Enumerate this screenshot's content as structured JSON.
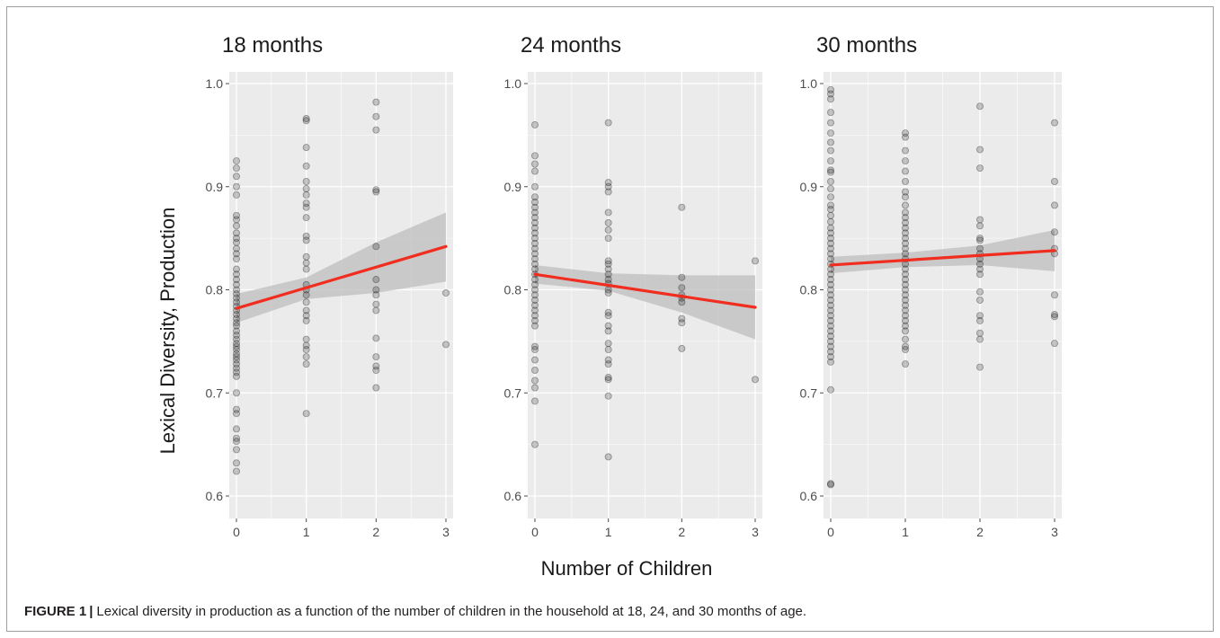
{
  "caption": {
    "label": "FIGURE 1",
    "separator": "|",
    "text": "Lexical diversity in production as a function of the number of children in the household at 18, 24, and 30 months of age."
  },
  "colors": {
    "panel_bg": "#ebebeb",
    "grid": "#ffffff",
    "points": "#000000",
    "fit_line": "#f02d1f",
    "ribbon": "#bdbdbd",
    "text": "#1a1a1a",
    "ticks": "#4d4d4d"
  },
  "chart_data": {
    "type": "scatter",
    "ylabel": "Lexical Diversity, Production",
    "xlabel": "Number of Children",
    "shared_ylim": [
      0.6,
      1.0
    ],
    "shared_xlim": [
      0,
      3
    ],
    "y_ticks": [
      "0.6",
      "0.7",
      "0.8",
      "0.9",
      "1.0"
    ],
    "x_ticks": [
      "0",
      "1",
      "2",
      "3"
    ],
    "grid": true,
    "point_alpha": 0.2,
    "panels": [
      {
        "title": "18 months",
        "fit": {
          "x": [
            0,
            3
          ],
          "y": [
            0.782,
            0.842
          ]
        },
        "ci": {
          "x": [
            0,
            1,
            2,
            3
          ],
          "lower": [
            0.768,
            0.791,
            0.797,
            0.808
          ],
          "upper": [
            0.796,
            0.812,
            0.846,
            0.875
          ]
        },
        "points": [
          [
            0,
            0.925
          ],
          [
            0,
            0.918
          ],
          [
            0,
            0.91
          ],
          [
            0,
            0.9
          ],
          [
            0,
            0.892
          ],
          [
            0,
            0.872
          ],
          [
            0,
            0.868
          ],
          [
            0,
            0.862
          ],
          [
            0,
            0.855
          ],
          [
            0,
            0.85
          ],
          [
            0,
            0.846
          ],
          [
            0,
            0.84
          ],
          [
            0,
            0.835
          ],
          [
            0,
            0.83
          ],
          [
            0,
            0.82
          ],
          [
            0,
            0.815
          ],
          [
            0,
            0.81
          ],
          [
            0,
            0.805
          ],
          [
            0,
            0.8
          ],
          [
            0,
            0.796
          ],
          [
            0,
            0.792
          ],
          [
            0,
            0.788
          ],
          [
            0,
            0.784
          ],
          [
            0,
            0.78
          ],
          [
            0,
            0.776
          ],
          [
            0,
            0.772
          ],
          [
            0,
            0.768
          ],
          [
            0,
            0.765
          ],
          [
            0,
            0.76
          ],
          [
            0,
            0.756
          ],
          [
            0,
            0.752
          ],
          [
            0,
            0.748
          ],
          [
            0,
            0.745
          ],
          [
            0,
            0.742
          ],
          [
            0,
            0.738
          ],
          [
            0,
            0.735
          ],
          [
            0,
            0.732
          ],
          [
            0,
            0.728
          ],
          [
            0,
            0.724
          ],
          [
            0,
            0.72
          ],
          [
            0,
            0.716
          ],
          [
            0,
            0.7
          ],
          [
            0,
            0.684
          ],
          [
            0,
            0.68
          ],
          [
            0,
            0.665
          ],
          [
            0,
            0.656
          ],
          [
            0,
            0.653
          ],
          [
            0,
            0.645
          ],
          [
            0,
            0.632
          ],
          [
            0,
            0.624
          ],
          [
            1,
            0.966
          ],
          [
            1,
            0.964
          ],
          [
            1,
            0.938
          ],
          [
            1,
            0.92
          ],
          [
            1,
            0.905
          ],
          [
            1,
            0.898
          ],
          [
            1,
            0.892
          ],
          [
            1,
            0.884
          ],
          [
            1,
            0.88
          ],
          [
            1,
            0.87
          ],
          [
            1,
            0.852
          ],
          [
            1,
            0.848
          ],
          [
            1,
            0.832
          ],
          [
            1,
            0.826
          ],
          [
            1,
            0.82
          ],
          [
            1,
            0.805
          ],
          [
            1,
            0.8
          ],
          [
            1,
            0.795
          ],
          [
            1,
            0.788
          ],
          [
            1,
            0.78
          ],
          [
            1,
            0.775
          ],
          [
            1,
            0.77
          ],
          [
            1,
            0.752
          ],
          [
            1,
            0.746
          ],
          [
            1,
            0.742
          ],
          [
            1,
            0.735
          ],
          [
            1,
            0.728
          ],
          [
            1,
            0.68
          ],
          [
            2,
            0.982
          ],
          [
            2,
            0.968
          ],
          [
            2,
            0.955
          ],
          [
            2,
            0.897
          ],
          [
            2,
            0.895
          ],
          [
            2,
            0.842
          ],
          [
            2,
            0.81
          ],
          [
            2,
            0.8
          ],
          [
            2,
            0.795
          ],
          [
            2,
            0.786
          ],
          [
            2,
            0.78
          ],
          [
            2,
            0.753
          ],
          [
            2,
            0.735
          ],
          [
            2,
            0.726
          ],
          [
            2,
            0.722
          ],
          [
            2,
            0.705
          ],
          [
            3,
            0.797
          ],
          [
            3,
            0.747
          ]
        ]
      },
      {
        "title": "24 months",
        "fit": {
          "x": [
            0,
            3
          ],
          "y": [
            0.815,
            0.783
          ]
        },
        "ci": {
          "x": [
            0,
            1,
            2,
            3
          ],
          "lower": [
            0.806,
            0.799,
            0.778,
            0.752
          ],
          "upper": [
            0.824,
            0.816,
            0.814,
            0.814
          ]
        },
        "points": [
          [
            0,
            0.96
          ],
          [
            0,
            0.93
          ],
          [
            0,
            0.922
          ],
          [
            0,
            0.915
          ],
          [
            0,
            0.9
          ],
          [
            0,
            0.89
          ],
          [
            0,
            0.885
          ],
          [
            0,
            0.88
          ],
          [
            0,
            0.875
          ],
          [
            0,
            0.87
          ],
          [
            0,
            0.865
          ],
          [
            0,
            0.86
          ],
          [
            0,
            0.855
          ],
          [
            0,
            0.85
          ],
          [
            0,
            0.845
          ],
          [
            0,
            0.84
          ],
          [
            0,
            0.835
          ],
          [
            0,
            0.83
          ],
          [
            0,
            0.825
          ],
          [
            0,
            0.82
          ],
          [
            0,
            0.815
          ],
          [
            0,
            0.81
          ],
          [
            0,
            0.805
          ],
          [
            0,
            0.8
          ],
          [
            0,
            0.795
          ],
          [
            0,
            0.79
          ],
          [
            0,
            0.785
          ],
          [
            0,
            0.78
          ],
          [
            0,
            0.775
          ],
          [
            0,
            0.77
          ],
          [
            0,
            0.765
          ],
          [
            0,
            0.745
          ],
          [
            0,
            0.742
          ],
          [
            0,
            0.732
          ],
          [
            0,
            0.722
          ],
          [
            0,
            0.712
          ],
          [
            0,
            0.705
          ],
          [
            0,
            0.692
          ],
          [
            0,
            0.65
          ],
          [
            1,
            0.962
          ],
          [
            1,
            0.904
          ],
          [
            1,
            0.9
          ],
          [
            1,
            0.895
          ],
          [
            1,
            0.875
          ],
          [
            1,
            0.865
          ],
          [
            1,
            0.858
          ],
          [
            1,
            0.85
          ],
          [
            1,
            0.828
          ],
          [
            1,
            0.825
          ],
          [
            1,
            0.82
          ],
          [
            1,
            0.815
          ],
          [
            1,
            0.81
          ],
          [
            1,
            0.806
          ],
          [
            1,
            0.8
          ],
          [
            1,
            0.797
          ],
          [
            1,
            0.778
          ],
          [
            1,
            0.775
          ],
          [
            1,
            0.765
          ],
          [
            1,
            0.76
          ],
          [
            1,
            0.748
          ],
          [
            1,
            0.742
          ],
          [
            1,
            0.732
          ],
          [
            1,
            0.728
          ],
          [
            1,
            0.715
          ],
          [
            1,
            0.713
          ],
          [
            1,
            0.697
          ],
          [
            1,
            0.638
          ],
          [
            2,
            0.88
          ],
          [
            2,
            0.812
          ],
          [
            2,
            0.802
          ],
          [
            2,
            0.795
          ],
          [
            2,
            0.792
          ],
          [
            2,
            0.788
          ],
          [
            2,
            0.772
          ],
          [
            2,
            0.768
          ],
          [
            2,
            0.743
          ],
          [
            3,
            0.828
          ],
          [
            3,
            0.713
          ]
        ]
      },
      {
        "title": "30 months",
        "fit": {
          "x": [
            0,
            3
          ],
          "y": [
            0.824,
            0.838
          ]
        },
        "ci": {
          "x": [
            0,
            1,
            2,
            3
          ],
          "lower": [
            0.816,
            0.822,
            0.824,
            0.818
          ],
          "upper": [
            0.832,
            0.836,
            0.843,
            0.858
          ]
        },
        "points": [
          [
            0,
            0.994
          ],
          [
            0,
            0.99
          ],
          [
            0,
            0.985
          ],
          [
            0,
            0.972
          ],
          [
            0,
            0.962
          ],
          [
            0,
            0.952
          ],
          [
            0,
            0.943
          ],
          [
            0,
            0.935
          ],
          [
            0,
            0.925
          ],
          [
            0,
            0.916
          ],
          [
            0,
            0.914
          ],
          [
            0,
            0.905
          ],
          [
            0,
            0.898
          ],
          [
            0,
            0.89
          ],
          [
            0,
            0.882
          ],
          [
            0,
            0.878
          ],
          [
            0,
            0.872
          ],
          [
            0,
            0.866
          ],
          [
            0,
            0.86
          ],
          [
            0,
            0.855
          ],
          [
            0,
            0.85
          ],
          [
            0,
            0.845
          ],
          [
            0,
            0.84
          ],
          [
            0,
            0.835
          ],
          [
            0,
            0.83
          ],
          [
            0,
            0.825
          ],
          [
            0,
            0.82
          ],
          [
            0,
            0.815
          ],
          [
            0,
            0.81
          ],
          [
            0,
            0.805
          ],
          [
            0,
            0.8
          ],
          [
            0,
            0.795
          ],
          [
            0,
            0.79
          ],
          [
            0,
            0.785
          ],
          [
            0,
            0.78
          ],
          [
            0,
            0.775
          ],
          [
            0,
            0.77
          ],
          [
            0,
            0.765
          ],
          [
            0,
            0.76
          ],
          [
            0,
            0.755
          ],
          [
            0,
            0.75
          ],
          [
            0,
            0.745
          ],
          [
            0,
            0.74
          ],
          [
            0,
            0.735
          ],
          [
            0,
            0.73
          ],
          [
            0,
            0.703
          ],
          [
            0,
            0.612
          ],
          [
            0,
            0.611
          ],
          [
            1,
            0.952
          ],
          [
            1,
            0.948
          ],
          [
            1,
            0.935
          ],
          [
            1,
            0.925
          ],
          [
            1,
            0.915
          ],
          [
            1,
            0.905
          ],
          [
            1,
            0.895
          ],
          [
            1,
            0.89
          ],
          [
            1,
            0.882
          ],
          [
            1,
            0.875
          ],
          [
            1,
            0.87
          ],
          [
            1,
            0.865
          ],
          [
            1,
            0.86
          ],
          [
            1,
            0.855
          ],
          [
            1,
            0.85
          ],
          [
            1,
            0.845
          ],
          [
            1,
            0.84
          ],
          [
            1,
            0.835
          ],
          [
            1,
            0.83
          ],
          [
            1,
            0.825
          ],
          [
            1,
            0.82
          ],
          [
            1,
            0.815
          ],
          [
            1,
            0.81
          ],
          [
            1,
            0.805
          ],
          [
            1,
            0.8
          ],
          [
            1,
            0.795
          ],
          [
            1,
            0.79
          ],
          [
            1,
            0.785
          ],
          [
            1,
            0.78
          ],
          [
            1,
            0.775
          ],
          [
            1,
            0.77
          ],
          [
            1,
            0.765
          ],
          [
            1,
            0.76
          ],
          [
            1,
            0.752
          ],
          [
            1,
            0.745
          ],
          [
            1,
            0.742
          ],
          [
            1,
            0.728
          ],
          [
            2,
            0.978
          ],
          [
            2,
            0.936
          ],
          [
            2,
            0.918
          ],
          [
            2,
            0.868
          ],
          [
            2,
            0.862
          ],
          [
            2,
            0.85
          ],
          [
            2,
            0.848
          ],
          [
            2,
            0.84
          ],
          [
            2,
            0.835
          ],
          [
            2,
            0.83
          ],
          [
            2,
            0.825
          ],
          [
            2,
            0.82
          ],
          [
            2,
            0.815
          ],
          [
            2,
            0.798
          ],
          [
            2,
            0.79
          ],
          [
            2,
            0.775
          ],
          [
            2,
            0.77
          ],
          [
            2,
            0.758
          ],
          [
            2,
            0.752
          ],
          [
            2,
            0.725
          ],
          [
            3,
            0.962
          ],
          [
            3,
            0.905
          ],
          [
            3,
            0.882
          ],
          [
            3,
            0.856
          ],
          [
            3,
            0.84
          ],
          [
            3,
            0.835
          ],
          [
            3,
            0.795
          ],
          [
            3,
            0.776
          ],
          [
            3,
            0.774
          ],
          [
            3,
            0.748
          ]
        ]
      }
    ]
  }
}
